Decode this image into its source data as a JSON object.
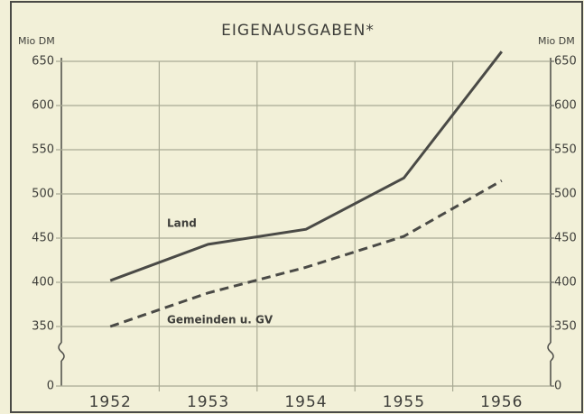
{
  "chart_data": {
    "type": "line",
    "title": "EIGENAUSGABEN*",
    "ylabel": "Mio DM",
    "y2label": "Mio DM",
    "categories": [
      "1952",
      "1953",
      "1954",
      "1955",
      "1956"
    ],
    "series": [
      {
        "name": "Land",
        "color": "#4a4a46",
        "style": "solid",
        "values": [
          402,
          443,
          460,
          518,
          661
        ]
      },
      {
        "name": "Gemeinden u. GV",
        "color": "#4a4a46",
        "style": "dashed",
        "values": [
          350,
          388,
          417,
          452,
          515
        ]
      }
    ],
    "ylim": [
      0,
      650
    ],
    "yticks": [
      0,
      350,
      400,
      450,
      500,
      550,
      600,
      650
    ],
    "y2lim": [
      0,
      650
    ],
    "y2ticks": [
      0,
      350,
      400,
      450,
      500,
      550,
      600,
      650
    ],
    "y_break": [
      0,
      350
    ],
    "grid": true
  }
}
